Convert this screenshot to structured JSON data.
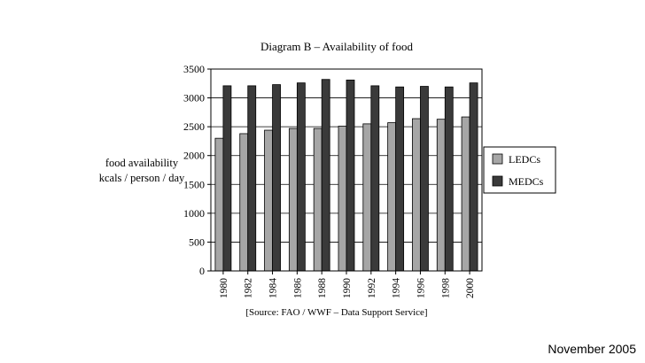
{
  "chart_data": {
    "type": "bar",
    "title": "Diagram B – Availability of food",
    "ylabel_line1": "food availability",
    "ylabel_line2": "kcals / person / day",
    "xlabel": "",
    "ylim": [
      0,
      3500
    ],
    "yticks": [
      0,
      500,
      1000,
      1500,
      2000,
      2500,
      3000,
      3500
    ],
    "grid": true,
    "legend_position": "right",
    "categories": [
      "1980",
      "1982",
      "1984",
      "1986",
      "1988",
      "1990",
      "1992",
      "1994",
      "1996",
      "1998",
      "2000"
    ],
    "series": [
      {
        "name": "LEDCs",
        "color": "#a6a6a6",
        "values": [
          2300,
          2380,
          2440,
          2470,
          2470,
          2510,
          2550,
          2570,
          2640,
          2630,
          2670
        ]
      },
      {
        "name": "MEDCs",
        "color": "#3a3a3a",
        "values": [
          3210,
          3210,
          3230,
          3260,
          3320,
          3310,
          3210,
          3190,
          3200,
          3190,
          3260
        ]
      }
    ],
    "source": "[Source: FAO / WWF – Data Support Service]"
  },
  "footer": {
    "date": "November 2005"
  }
}
